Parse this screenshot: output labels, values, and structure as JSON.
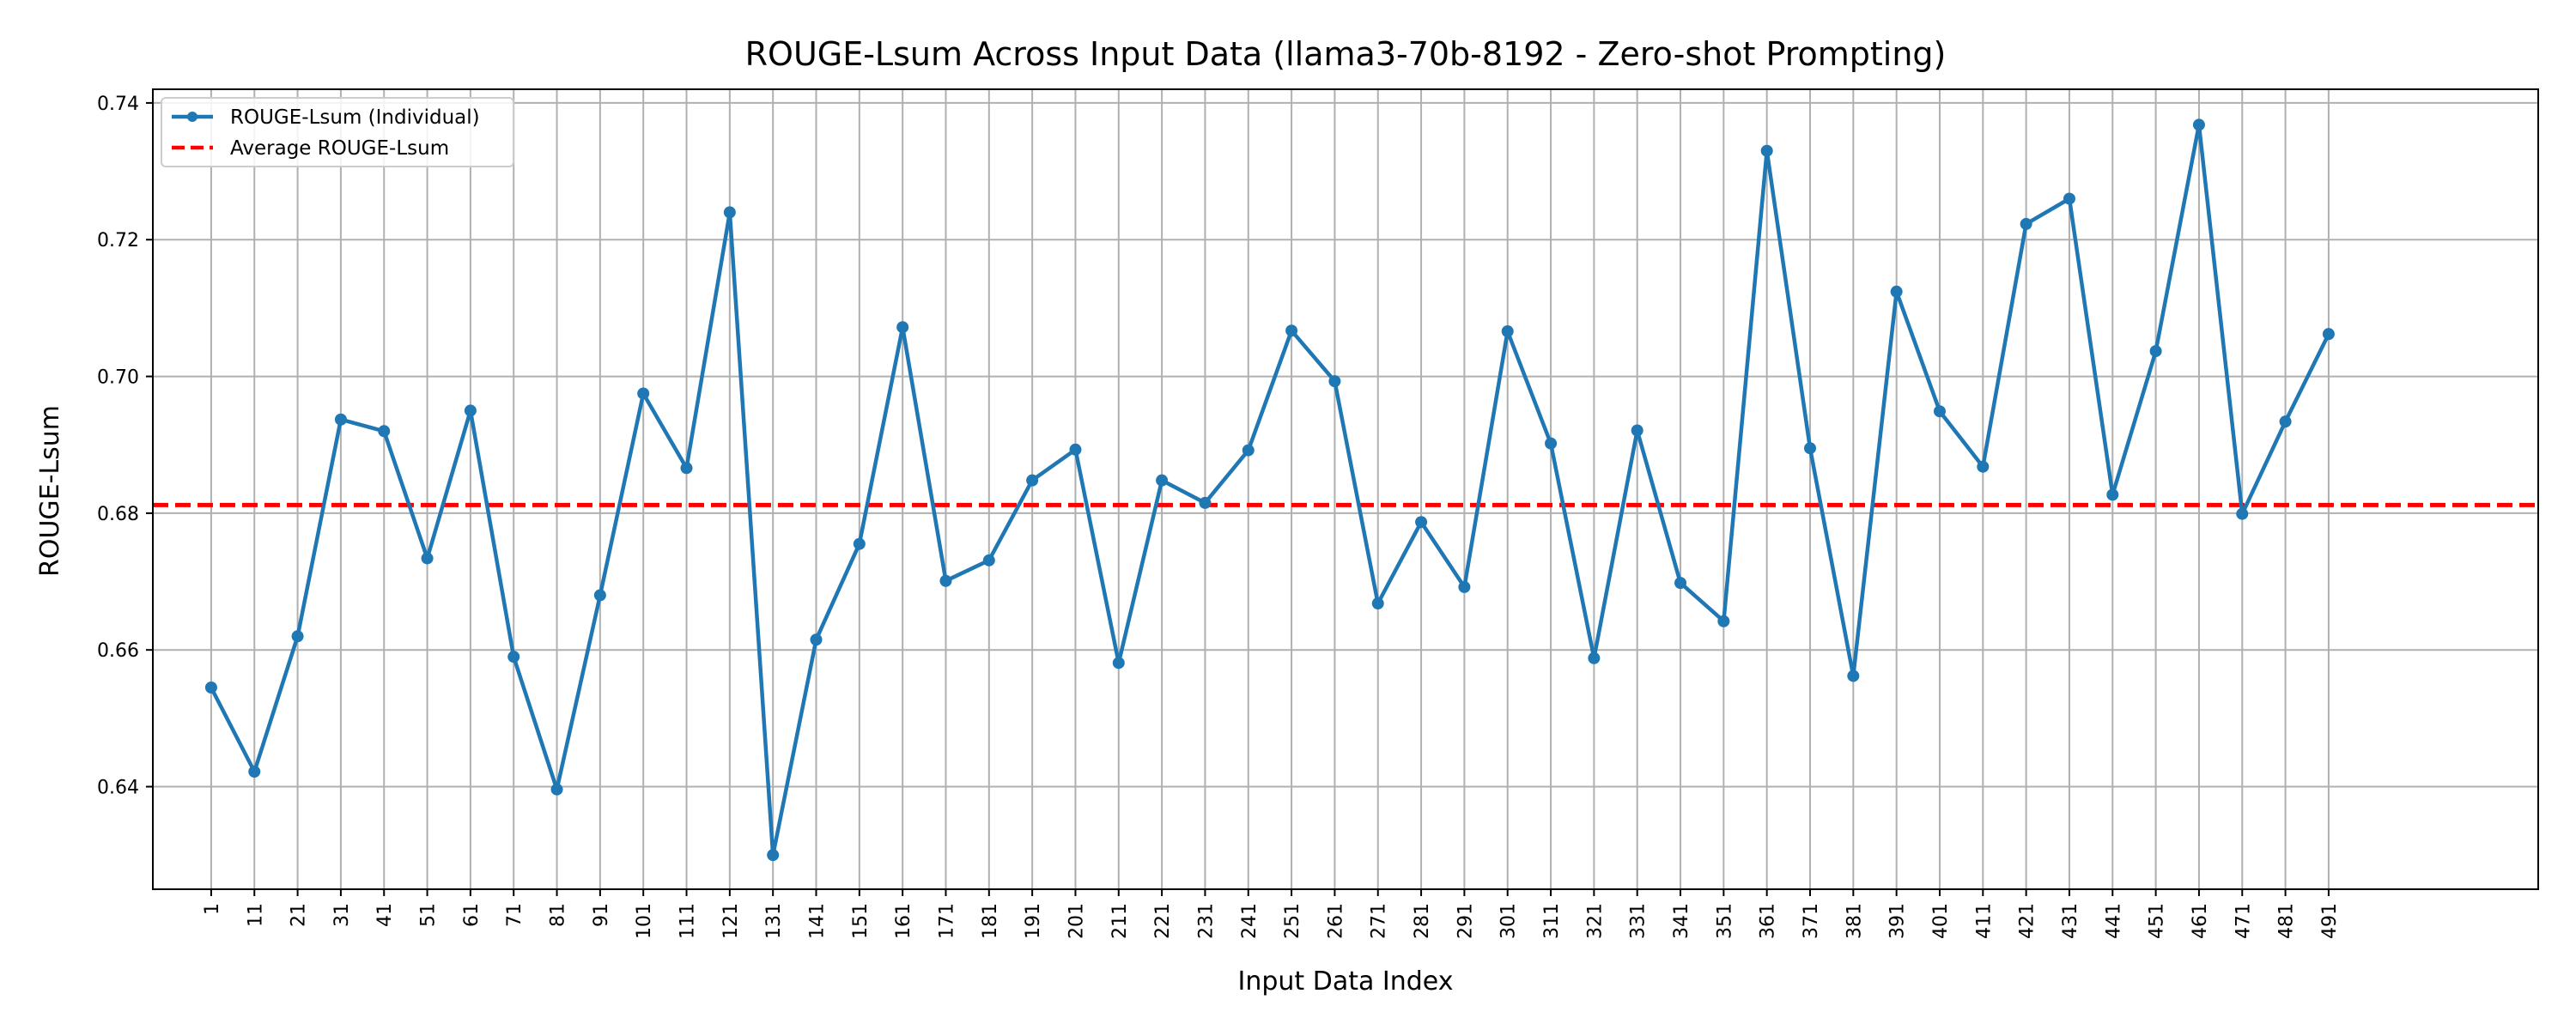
{
  "chart_data": {
    "type": "line",
    "title": "ROUGE-Lsum Across Input Data (llama3-70b-8192 - Zero-shot Prompting)",
    "xlabel": "Input Data Index",
    "ylabel": "ROUGE-Lsum",
    "ylim": [
      0.625,
      0.742
    ],
    "yticks": [
      0.64,
      0.66,
      0.68,
      0.7,
      0.72,
      0.74
    ],
    "ytick_labels": [
      "0.64",
      "0.66",
      "0.68",
      "0.70",
      "0.72",
      "0.74"
    ],
    "x": [
      1,
      11,
      21,
      31,
      41,
      51,
      61,
      71,
      81,
      91,
      101,
      111,
      121,
      131,
      141,
      151,
      161,
      171,
      181,
      191,
      201,
      211,
      221,
      231,
      241,
      251,
      261,
      271,
      281,
      291,
      301,
      311,
      321,
      331,
      341,
      351,
      361,
      371,
      381,
      391,
      401,
      411,
      421,
      431,
      441,
      451,
      461,
      471,
      481,
      491
    ],
    "xtick_labels": [
      "1",
      "11",
      "21",
      "31",
      "41",
      "51",
      "61",
      "71",
      "81",
      "91",
      "101",
      "111",
      "121",
      "131",
      "141",
      "151",
      "161",
      "171",
      "181",
      "191",
      "201",
      "211",
      "221",
      "231",
      "241",
      "251",
      "261",
      "271",
      "281",
      "291",
      "301",
      "311",
      "321",
      "331",
      "341",
      "351",
      "361",
      "371",
      "381",
      "391",
      "401",
      "411",
      "421",
      "431",
      "441",
      "451",
      "461",
      "471",
      "481",
      "491"
    ],
    "series": [
      {
        "name": "ROUGE-Lsum (Individual)",
        "color": "#1f77b4",
        "style": "solid-with-markers",
        "values": [
          0.6545,
          0.6422,
          0.662,
          0.6937,
          0.692,
          0.6734,
          0.695,
          0.659,
          0.6396,
          0.668,
          0.6975,
          0.6866,
          0.724,
          0.63,
          0.6615,
          0.6755,
          0.7072,
          0.6701,
          0.6731,
          0.6848,
          0.6893,
          0.6581,
          0.6848,
          0.6815,
          0.6892,
          0.7067,
          0.6993,
          0.6668,
          0.6787,
          0.6692,
          0.7066,
          0.6902,
          0.6588,
          0.6921,
          0.6698,
          0.6642,
          0.733,
          0.6895,
          0.6562,
          0.7124,
          0.6949,
          0.6868,
          0.7223,
          0.726,
          0.6827,
          0.7037,
          0.7368,
          0.6799,
          0.6934,
          0.7062
        ]
      },
      {
        "name": "Average ROUGE-Lsum",
        "color": "#ff0000",
        "style": "dashed",
        "value": 0.6812
      }
    ],
    "grid": true,
    "legend_position": "top-left"
  }
}
